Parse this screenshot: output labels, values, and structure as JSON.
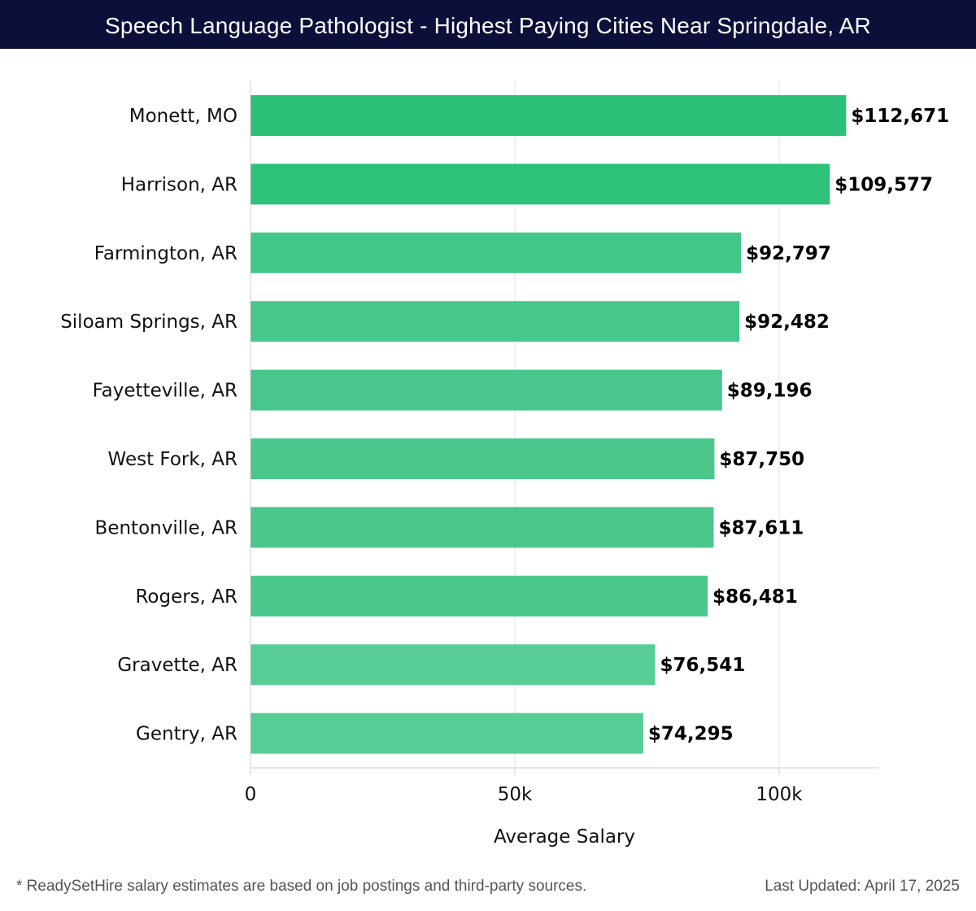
{
  "header": {
    "title": "Speech Language Pathologist - Highest Paying Cities Near Springdale, AR"
  },
  "chart_data": {
    "type": "bar",
    "orientation": "horizontal",
    "title": "Speech Language Pathologist - Highest Paying Cities Near Springdale, AR",
    "xlabel": "Average Salary",
    "ylabel": "",
    "xlim": [
      0,
      118000
    ],
    "xticks": [
      0,
      50000,
      100000
    ],
    "xtick_labels": [
      "0",
      "50k",
      "100k"
    ],
    "grid": true,
    "categories": [
      "Monett, MO",
      "Harrison, AR",
      "Farmington, AR",
      "Siloam Springs, AR",
      "Fayetteville, AR",
      "West Fork, AR",
      "Bentonville, AR",
      "Rogers, AR",
      "Gravette, AR",
      "Gentry, AR"
    ],
    "values": [
      112671,
      109577,
      92797,
      92482,
      89196,
      87750,
      87611,
      86481,
      76541,
      74295
    ],
    "value_labels": [
      "$112,671",
      "$109,577",
      "$92,797",
      "$92,482",
      "$89,196",
      "$87,750",
      "$87,611",
      "$86,481",
      "$76,541",
      "$74,295"
    ],
    "colors": [
      "#2bbf78",
      "#2dc179",
      "#43c789",
      "#45c88a",
      "#49c68b",
      "#4bc78c",
      "#4bc78c",
      "#4cc88d",
      "#59cd96",
      "#59cd96"
    ]
  },
  "footer": {
    "disclaimer": "* ReadySetHire salary estimates are based on job postings and third-party sources.",
    "last_updated": "Last Updated: April 17, 2025"
  }
}
